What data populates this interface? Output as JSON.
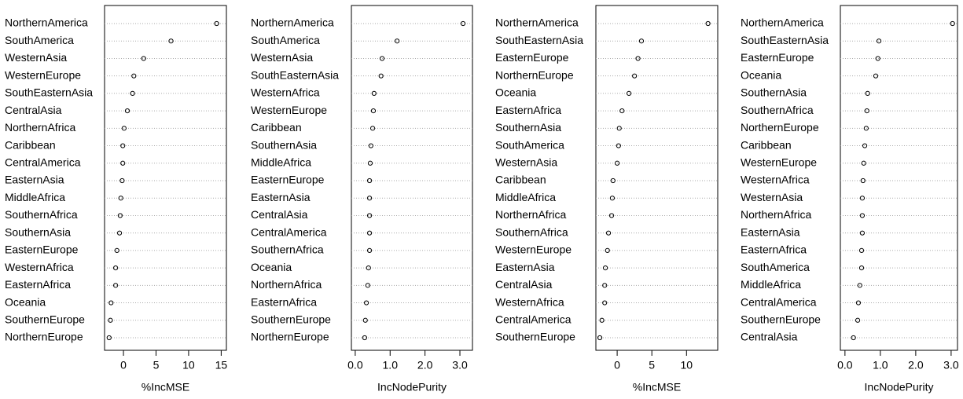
{
  "chart_data": [
    {
      "type": "dot",
      "xlabel": "%IncMSE",
      "color": "#000000",
      "grid": true,
      "categories": [
        "NorthernAmerica",
        "SouthAmerica",
        "WesternAsia",
        "WesternEurope",
        "SouthEasternAsia",
        "CentralAsia",
        "NorthernAfrica",
        "Caribbean",
        "CentralAmerica",
        "EasternAsia",
        "MiddleAfrica",
        "SouthernAfrica",
        "SouthernAsia",
        "EasternEurope",
        "WesternAfrica",
        "EasternAfrica",
        "Oceania",
        "SouthernEurope",
        "NorthernEurope"
      ],
      "values": [
        14.3,
        7.3,
        3.1,
        1.6,
        1.4,
        0.6,
        0.1,
        -0.1,
        -0.1,
        -0.2,
        -0.4,
        -0.5,
        -0.6,
        -1.0,
        -1.2,
        -1.2,
        -1.9,
        -2.0,
        -2.2
      ],
      "xlim": [
        -2.9,
        15.8
      ],
      "xticks": [
        0,
        5,
        10,
        15
      ]
    },
    {
      "type": "dot",
      "xlabel": "IncNodePurity",
      "color": "#000000",
      "grid": true,
      "categories": [
        "NorthernAmerica",
        "SouthAmerica",
        "WesternAsia",
        "SouthEasternAsia",
        "WesternAfrica",
        "WesternEurope",
        "Caribbean",
        "SouthernAsia",
        "MiddleAfrica",
        "EasternEurope",
        "EasternAsia",
        "CentralAsia",
        "CentralAmerica",
        "SouthernAfrica",
        "Oceania",
        "NorthernAfrica",
        "EasternAfrica",
        "SouthernEurope",
        "NorthernEurope"
      ],
      "values": [
        3.09,
        1.2,
        0.77,
        0.74,
        0.54,
        0.52,
        0.5,
        0.45,
        0.43,
        0.41,
        0.41,
        0.41,
        0.41,
        0.41,
        0.38,
        0.36,
        0.32,
        0.29,
        0.27
      ],
      "xlim": [
        -0.11,
        3.36
      ],
      "xticks": [
        {
          "value": 0,
          "label": "0.0"
        },
        {
          "value": 1,
          "label": "1.0"
        },
        {
          "value": 2,
          "label": "2.0"
        },
        {
          "value": 3,
          "label": "3.0"
        }
      ]
    },
    {
      "type": "dot",
      "xlabel": "%IncMSE",
      "color": "#000000",
      "grid": true,
      "categories": [
        "NorthernAmerica",
        "SouthEasternAsia",
        "EasternEurope",
        "NorthernEurope",
        "Oceania",
        "EasternAfrica",
        "SouthernAsia",
        "SouthAmerica",
        "WesternAsia",
        "Caribbean",
        "MiddleAfrica",
        "NorthernAfrica",
        "SouthernAfrica",
        "WesternEurope",
        "EasternAsia",
        "CentralAsia",
        "WesternAfrica",
        "CentralAmerica",
        "SouthernEurope"
      ],
      "values": [
        13.1,
        3.5,
        3.0,
        2.5,
        1.7,
        0.7,
        0.3,
        0.2,
        0.0,
        -0.6,
        -0.7,
        -0.8,
        -1.25,
        -1.4,
        -1.7,
        -1.8,
        -1.8,
        -2.2,
        -2.5
      ],
      "xlim": [
        -3.07,
        14.5
      ],
      "xticks": [
        0,
        5,
        10
      ]
    },
    {
      "type": "dot",
      "xlabel": "IncNodePurity",
      "color": "#000000",
      "grid": true,
      "categories": [
        "NorthernAmerica",
        "SouthEasternAsia",
        "EasternEurope",
        "Oceania",
        "SouthernAsia",
        "SouthernAfrica",
        "NorthernEurope",
        "Caribbean",
        "WesternEurope",
        "WesternAfrica",
        "WesternAsia",
        "NorthernAfrica",
        "EasternAsia",
        "EasternAfrica",
        "SouthAmerica",
        "MiddleAfrica",
        "CentralAmerica",
        "SouthernEurope",
        "CentralAsia"
      ],
      "values": [
        3.04,
        0.96,
        0.93,
        0.87,
        0.64,
        0.62,
        0.6,
        0.56,
        0.53,
        0.51,
        0.49,
        0.49,
        0.49,
        0.47,
        0.47,
        0.42,
        0.38,
        0.36,
        0.24
      ],
      "xlim": [
        -0.13,
        3.18
      ],
      "xticks": [
        {
          "value": 0,
          "label": "0.0"
        },
        {
          "value": 1,
          "label": "1.0"
        },
        {
          "value": 2,
          "label": "2.0"
        },
        {
          "value": 3,
          "label": "3.0"
        }
      ]
    }
  ]
}
